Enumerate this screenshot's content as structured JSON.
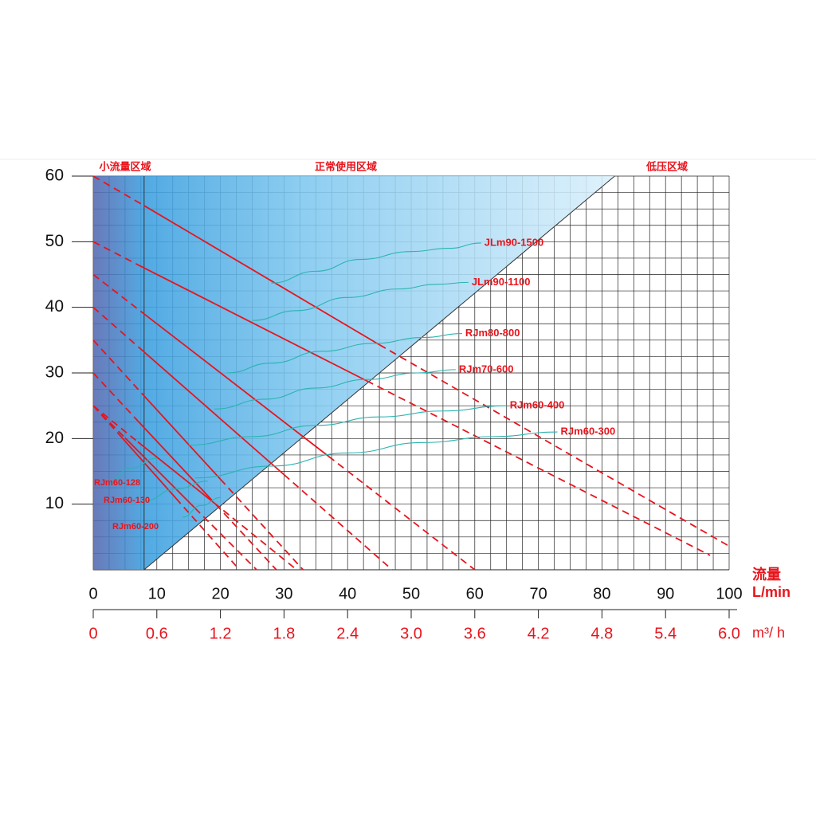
{
  "chart_data": {
    "type": "line",
    "regions": [
      "小流量区域",
      "正常使用区域",
      "低压区域"
    ],
    "x_label": "流量",
    "x_unit": "L/min",
    "x2_label": "m³/ h",
    "xlim": [
      0,
      100
    ],
    "xticks": [
      0,
      10,
      20,
      30,
      40,
      50,
      60,
      70,
      80,
      90,
      100
    ],
    "x2lim": [
      0,
      6
    ],
    "x2ticks": [
      0,
      0.6,
      1.2,
      1.8,
      2.4,
      {
        "value": 3,
        "label": "3.0"
      },
      3.6,
      4.2,
      4.8,
      5.4,
      {
        "value": 6,
        "label": "6.0"
      }
    ],
    "ylim": [
      0,
      60
    ],
    "yticks": [
      10,
      20,
      30,
      40,
      50,
      60
    ],
    "grid": true,
    "low_flow_limit": 8,
    "boundary": {
      "x": [
        8,
        82
      ],
      "values": [
        0,
        60
      ]
    },
    "pump_color": "#e8141c",
    "pump_curves": [
      {
        "x": [
          0,
          8,
          45,
          100
        ],
        "values": [
          60,
          55.5,
          34.3,
          3.6
        ]
      },
      {
        "x": [
          0,
          7,
          43,
          97
        ],
        "values": [
          50,
          46.5,
          28.8,
          2.2
        ]
      },
      {
        "x": [
          0,
          8,
          37,
          60
        ],
        "values": [
          45,
          39,
          17.3,
          0
        ]
      },
      {
        "x": [
          0,
          8,
          30,
          47
        ],
        "values": [
          40,
          33.2,
          14.5,
          0
        ]
      },
      {
        "x": [
          0,
          8,
          20,
          33
        ],
        "values": [
          35,
          26.5,
          13.8,
          0
        ]
      },
      {
        "x": [
          0,
          7,
          18,
          28.8
        ],
        "values": [
          30,
          22.7,
          11.3,
          0
        ]
      },
      {
        "x": [
          0,
          7,
          19,
          32
        ],
        "values": [
          25,
          19.5,
          10.2,
          0
        ]
      },
      {
        "x": [
          0,
          5,
          16,
          25.7
        ],
        "values": [
          25,
          20.1,
          9.4,
          0
        ]
      },
      {
        "x": [
          0,
          4,
          13,
          23
        ],
        "values": [
          25,
          20.7,
          10.9,
          0
        ]
      }
    ],
    "series": [
      {
        "name": "JLm90-1500",
        "color": "#2bb3b0",
        "x": [
          28,
          35,
          42,
          50,
          56,
          61
        ],
        "values": [
          43.7,
          45.5,
          47.3,
          48.5,
          49,
          49.8
        ]
      },
      {
        "name": "JLm90-1100",
        "color": "#2bb3b0",
        "x": [
          25,
          32,
          40,
          48,
          54,
          59
        ],
        "values": [
          38,
          39.5,
          41.5,
          42.8,
          43.5,
          43.8
        ]
      },
      {
        "name": "RJm80-800",
        "color": "#2bb3b0",
        "x": [
          21,
          28,
          36,
          44,
          52,
          58
        ],
        "values": [
          30,
          31.5,
          33.3,
          34.5,
          35.4,
          36
        ]
      },
      {
        "name": "RJm70-600",
        "color": "#2bb3b0",
        "x": [
          19,
          27,
          35,
          43,
          51,
          57
        ],
        "values": [
          24.5,
          26,
          27.7,
          29,
          30,
          30.5
        ]
      },
      {
        "name": "RJm60-400",
        "color": "#2bb3b0",
        "x": [
          15,
          25,
          35,
          45,
          55,
          65
        ],
        "values": [
          19,
          20.3,
          22,
          23.3,
          24.2,
          25
        ]
      },
      {
        "name": "RJm60-300",
        "color": "#2bb3b0",
        "x": [
          16,
          28,
          40,
          52,
          63,
          73
        ],
        "values": [
          14,
          15.8,
          17.8,
          19.4,
          20.3,
          21
        ]
      },
      {
        "name": "RJm60-128",
        "color": "#2bb3b0",
        "x": [
          2,
          6,
          10
        ],
        "values": [
          13,
          15.5,
          17
        ]
      },
      {
        "name": "RJm60-130",
        "color": "#2bb3b0",
        "x": [
          8,
          13,
          18
        ],
        "values": [
          10.5,
          12.3,
          13.5
        ]
      },
      {
        "name": "RJm60-200",
        "color": "#2bb3b0",
        "x": [
          14,
          17,
          20
        ],
        "values": [
          8,
          9.8,
          11
        ]
      }
    ]
  }
}
